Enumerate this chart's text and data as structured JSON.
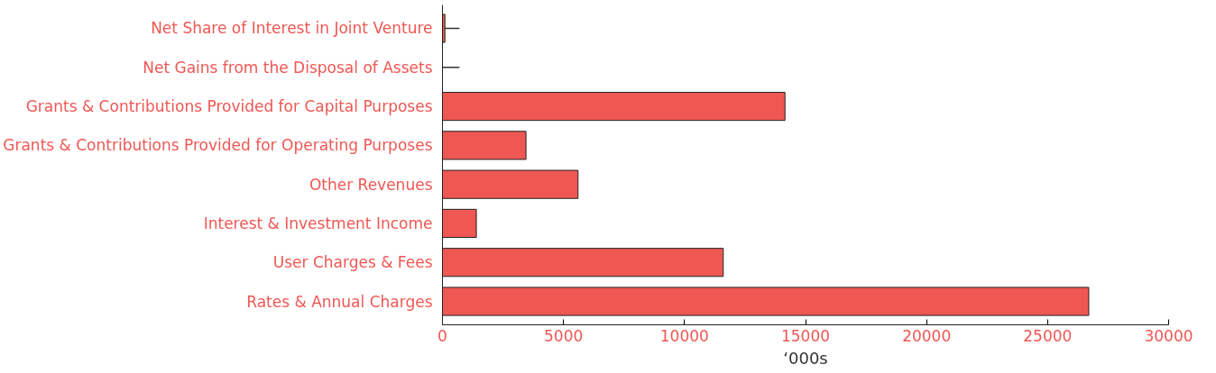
{
  "chart_data": {
    "type": "bar",
    "orientation": "horizontal",
    "xlabel": "‘000s",
    "categories": [
      "Net Share of Interest in Joint Venture",
      "Net Gains from the Disposal of Assets",
      "Grants & Contributions Provided for Capital Purposes",
      "Grants & Contributions Provided for Operating Purposes",
      "Other Revenues",
      "Interest & Investment Income",
      "User Charges & Fees",
      "Rates & Annual Charges"
    ],
    "values": [
      100,
      0,
      14150,
      3450,
      5600,
      1400,
      11600,
      26700
    ],
    "errors": [
      [
        100,
        700
      ],
      [
        0,
        700
      ],
      null,
      null,
      null,
      null,
      null,
      null
    ],
    "color": "#ef5753",
    "xlim": [
      0,
      30000
    ],
    "xticks": [
      0,
      5000,
      10000,
      15000,
      20000,
      25000,
      30000
    ],
    "grid": false
  }
}
